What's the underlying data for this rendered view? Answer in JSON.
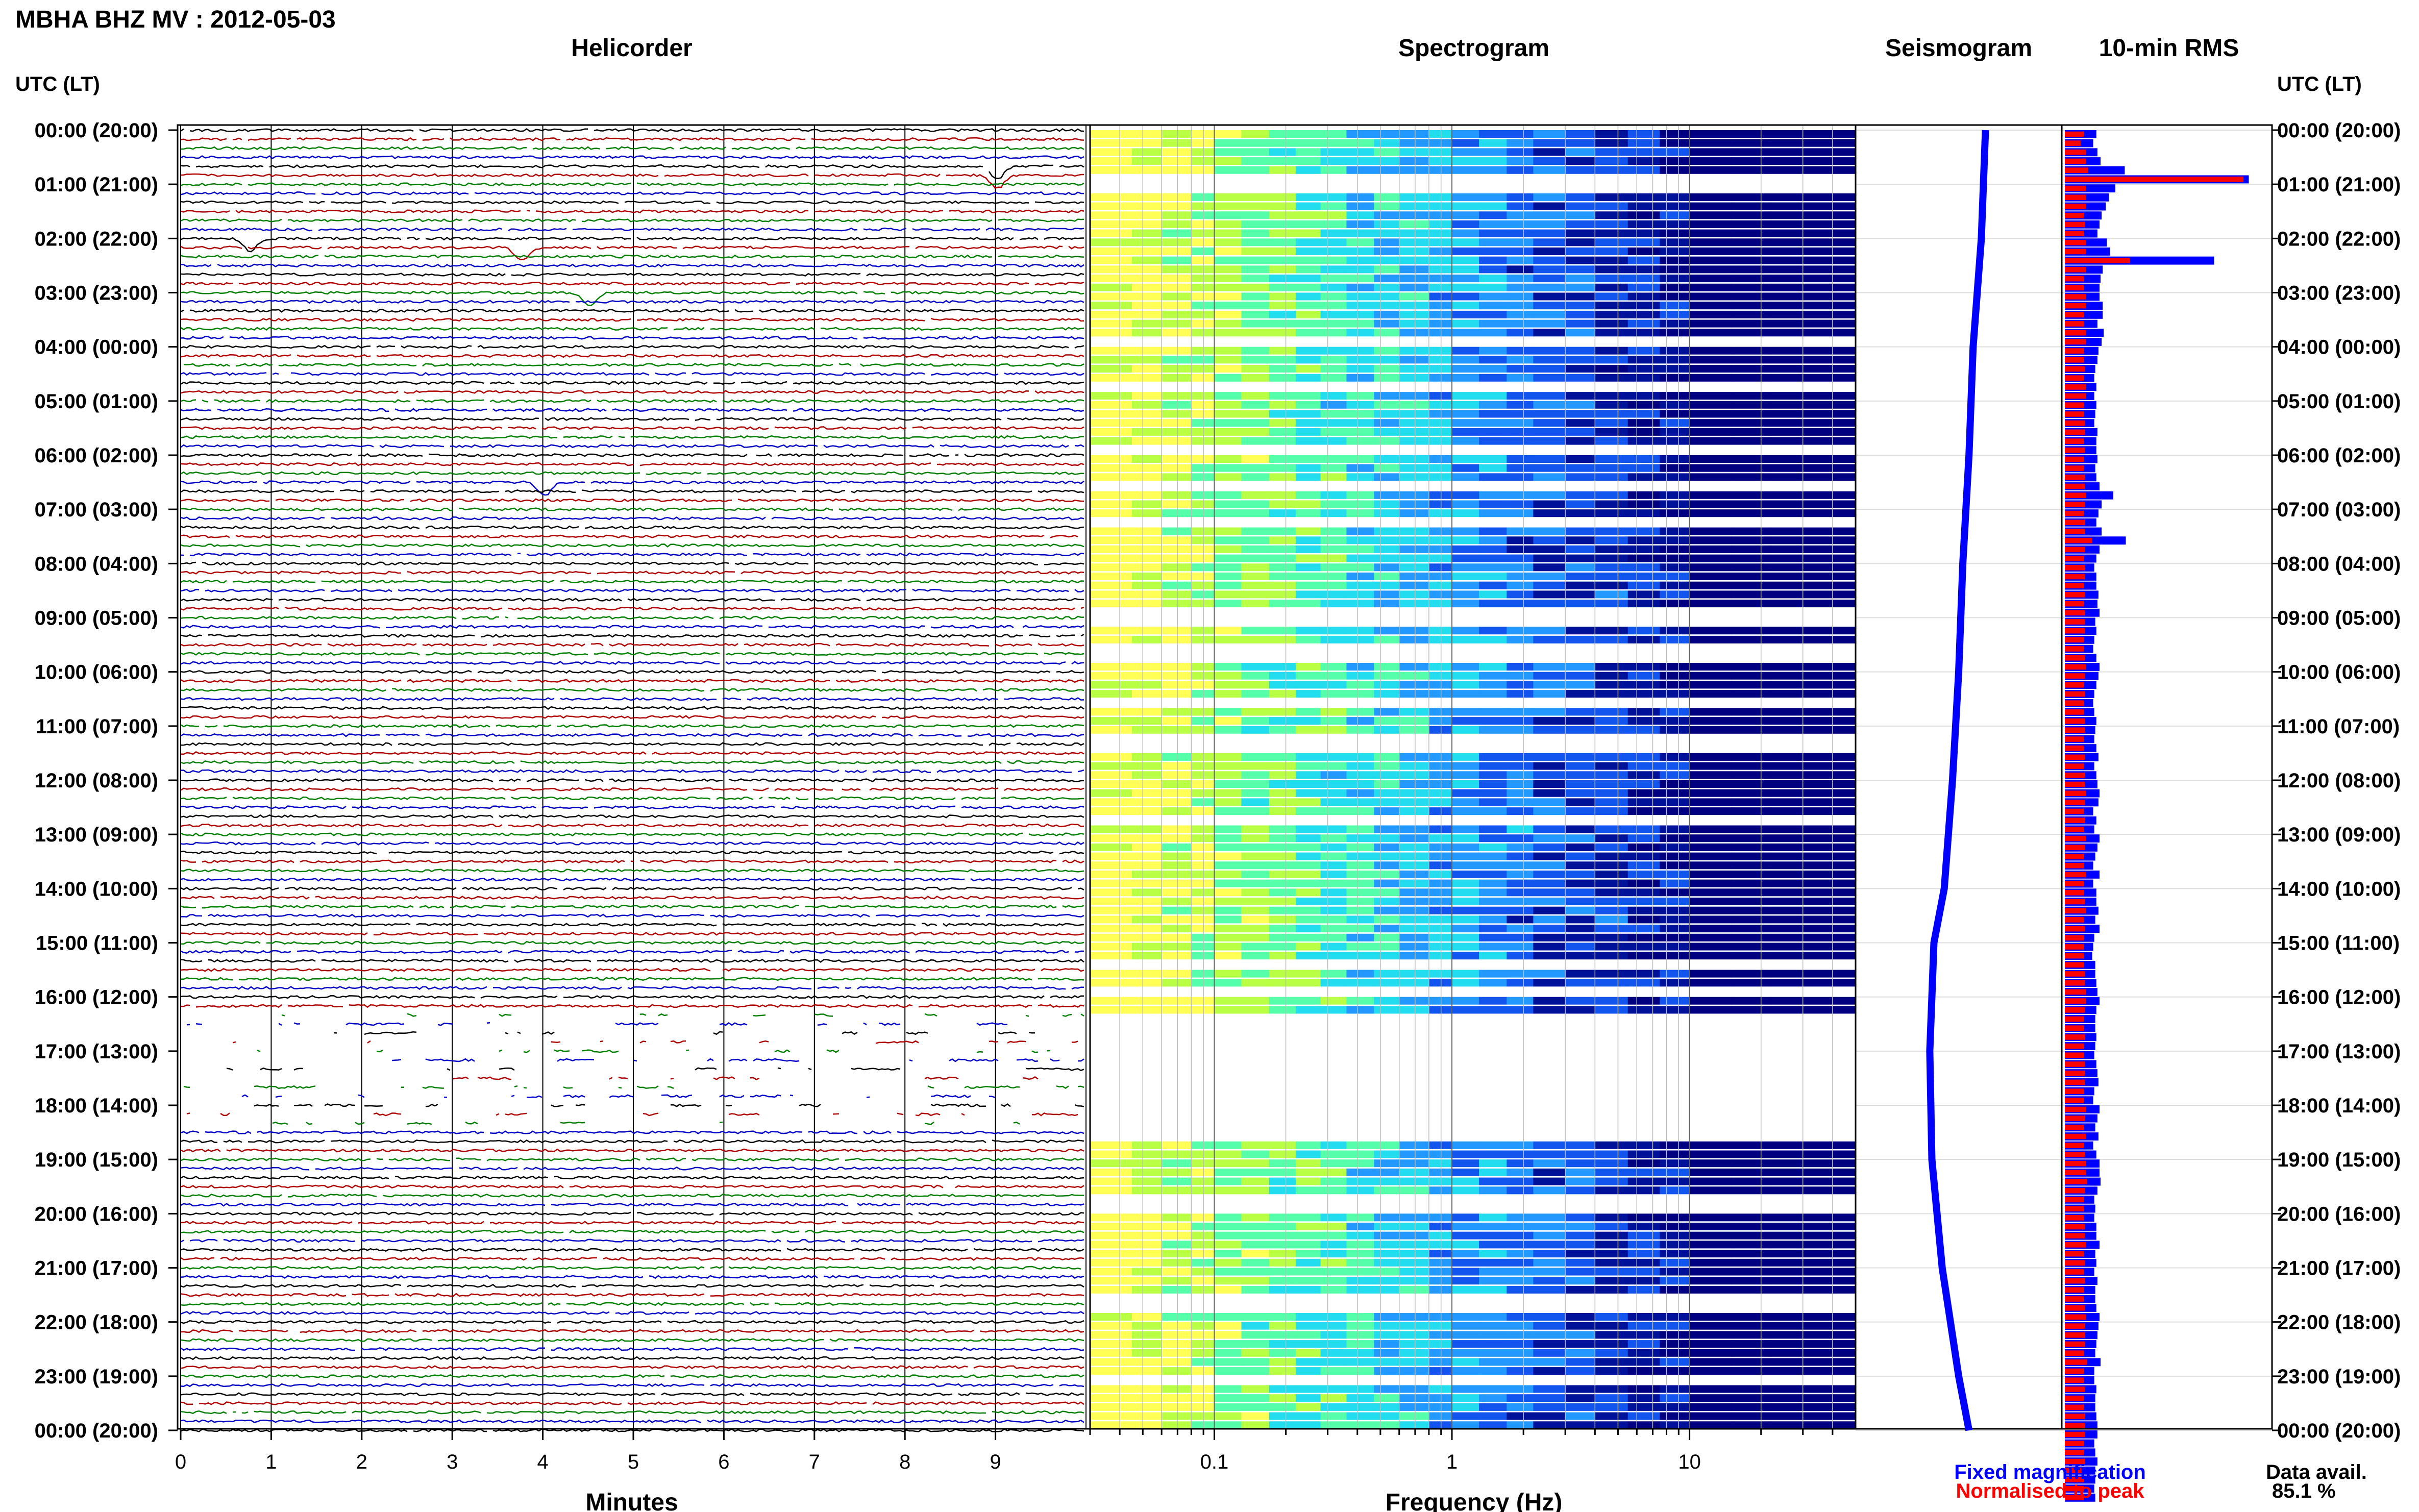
{
  "title": "MBHA BHZ MV : 2012-05-03",
  "panels": {
    "helicorder": "Helicorder",
    "spectrogram": "Spectrogram",
    "seismogram": "Seismogram",
    "rms": "10-min RMS"
  },
  "time_header_left": "UTC (LT)",
  "time_header_right": "UTC (LT)",
  "time_labels": [
    "00:00 (20:00)",
    "01:00 (21:00)",
    "02:00 (22:00)",
    "03:00 (23:00)",
    "04:00 (00:00)",
    "05:00 (01:00)",
    "06:00 (02:00)",
    "07:00 (03:00)",
    "08:00 (04:00)",
    "09:00 (05:00)",
    "10:00 (06:00)",
    "11:00 (07:00)",
    "12:00 (08:00)",
    "13:00 (09:00)",
    "14:00 (10:00)",
    "15:00 (11:00)",
    "16:00 (12:00)",
    "17:00 (13:00)",
    "18:00 (14:00)",
    "19:00 (15:00)",
    "20:00 (16:00)",
    "21:00 (17:00)",
    "22:00 (18:00)",
    "23:00 (19:00)",
    "00:00 (20:00)"
  ],
  "xlabels": {
    "helicorder": "Minutes",
    "spectrogram": "Frequency (Hz)"
  },
  "legend": {
    "fixed": "Fixed magnification",
    "normalised": "Normalised to peak",
    "fixed_color": "#0000ff",
    "normalised_color": "#ff0000"
  },
  "availability": {
    "label": "Data avail.",
    "value": "85.1 %"
  },
  "chart_data": [
    {
      "type": "line",
      "name": "helicorder",
      "xlabel": "Minutes",
      "x_ticks": [
        "0",
        "1",
        "2",
        "3",
        "4",
        "5",
        "6",
        "7",
        "8",
        "9"
      ],
      "xlim": [
        0,
        10
      ],
      "traces_per_hour": 6,
      "trace_colors": [
        "#000000",
        "#b00000",
        "#008000",
        "#0000c8"
      ],
      "gaps_hours": [
        [
          16.2,
          18.4
        ]
      ],
      "events": [
        {
          "hour": 0.75,
          "minute": 8.9
        },
        {
          "hour": 2.05,
          "minute": 0.65
        },
        {
          "hour": 2.15,
          "minute": 3.65
        },
        {
          "hour": 3.0,
          "minute": 4.4
        },
        {
          "hour": 6.55,
          "minute": 3.9
        }
      ]
    },
    {
      "type": "heatmap",
      "name": "spectrogram",
      "xlabel": "Frequency (Hz)",
      "x_scale": "log",
      "xlim": [
        0.03,
        50
      ],
      "x_ticks": [
        "0.1",
        "1",
        "10"
      ],
      "colormap": [
        "#ffff55",
        "#b9ff44",
        "#55ffaa",
        "#22ddee",
        "#2299ff",
        "#1155ee",
        "#001199",
        "#000080"
      ],
      "gaps_hours": [
        [
          16.3,
          18.6
        ]
      ]
    },
    {
      "type": "line",
      "name": "seismogram",
      "ylim_hours": [
        0,
        24
      ],
      "profile": [
        {
          "h": 0.0,
          "x": 0.63
        },
        {
          "h": 2.0,
          "x": 0.61
        },
        {
          "h": 4.0,
          "x": 0.57
        },
        {
          "h": 6.0,
          "x": 0.55
        },
        {
          "h": 8.0,
          "x": 0.52
        },
        {
          "h": 10.0,
          "x": 0.5
        },
        {
          "h": 12.0,
          "x": 0.47
        },
        {
          "h": 14.0,
          "x": 0.43
        },
        {
          "h": 15.0,
          "x": 0.38
        },
        {
          "h": 16.0,
          "x": 0.37
        },
        {
          "h": 17.0,
          "x": 0.36
        },
        {
          "h": 19.0,
          "x": 0.37
        },
        {
          "h": 21.0,
          "x": 0.42
        },
        {
          "h": 23.0,
          "x": 0.5
        },
        {
          "h": 24.0,
          "x": 0.55
        }
      ]
    },
    {
      "type": "bar",
      "name": "10-min RMS",
      "bins_per_hour": 6,
      "ylim_hours": [
        0,
        24
      ],
      "fixed_magnification": [
        0.3,
        0.27,
        0.31,
        0.34,
        0.57,
        1.75,
        0.48,
        0.42,
        0.39,
        0.35,
        0.33,
        0.31,
        0.4,
        0.43,
        1.42,
        0.36,
        0.34,
        0.33,
        0.33,
        0.36,
        0.36,
        0.31,
        0.37,
        0.35,
        0.32,
        0.31,
        0.29,
        0.28,
        0.3,
        0.28,
        0.3,
        0.29,
        0.28,
        0.31,
        0.3,
        0.3,
        0.31,
        0.29,
        0.3,
        0.33,
        0.46,
        0.35,
        0.32,
        0.3,
        0.35,
        0.58,
        0.33,
        0.3,
        0.28,
        0.3,
        0.3,
        0.32,
        0.31,
        0.33,
        0.29,
        0.3,
        0.28,
        0.27,
        0.3,
        0.33,
        0.32,
        0.3,
        0.28,
        0.27,
        0.28,
        0.3,
        0.29,
        0.28,
        0.3,
        0.32,
        0.28,
        0.3,
        0.31,
        0.33,
        0.32,
        0.27,
        0.3,
        0.28,
        0.33,
        0.31,
        0.29,
        0.27,
        0.33,
        0.27,
        0.3,
        0.3,
        0.32,
        0.29,
        0.33,
        0.28,
        0.27,
        0.26,
        0.29,
        0.29,
        0.3,
        0.31,
        0.33,
        0.3,
        0.29,
        0.29,
        0.3,
        0.29,
        0.28,
        0.3,
        0.31,
        0.32,
        0.28,
        0.27,
        0.33,
        0.31,
        0.29,
        0.32,
        0.27,
        0.3,
        0.33,
        0.33,
        0.34,
        0.31,
        0.28,
        0.29,
        0.28,
        0.3,
        0.3,
        0.33,
        0.29,
        0.3,
        0.28,
        0.31,
        0.29,
        0.29,
        0.3,
        0.33,
        0.32,
        0.31,
        0.3,
        0.29,
        0.34,
        0.28,
        0.28,
        0.3,
        0.29,
        0.29,
        0.3,
        0.31,
        0.31,
        0.28,
        0.29,
        0.31,
        0.29,
        0.29,
        0.28,
        0.29
      ],
      "normalised_to_peak": [
        0.18,
        0.15,
        0.2,
        0.2,
        0.22,
        1.7,
        0.2,
        0.2,
        0.2,
        0.18,
        0.19,
        0.18,
        0.2,
        0.2,
        0.62,
        0.2,
        0.18,
        0.18,
        0.2,
        0.2,
        0.18,
        0.18,
        0.2,
        0.2,
        0.18,
        0.18,
        0.19,
        0.18,
        0.2,
        0.2,
        0.18,
        0.18,
        0.19,
        0.19,
        0.18,
        0.19,
        0.18,
        0.18,
        0.19,
        0.19,
        0.2,
        0.19,
        0.18,
        0.19,
        0.19,
        0.26,
        0.19,
        0.18,
        0.19,
        0.19,
        0.18,
        0.19,
        0.18,
        0.19,
        0.19,
        0.19,
        0.18,
        0.18,
        0.19,
        0.2,
        0.19,
        0.18,
        0.19,
        0.18,
        0.18,
        0.19,
        0.19,
        0.18,
        0.18,
        0.19,
        0.18,
        0.19,
        0.19,
        0.2,
        0.19,
        0.18,
        0.19,
        0.18,
        0.2,
        0.19,
        0.18,
        0.18,
        0.2,
        0.18,
        0.18,
        0.19,
        0.2,
        0.18,
        0.19,
        0.18,
        0.18,
        0.18,
        0.18,
        0.19,
        0.19,
        0.2,
        0.2,
        0.19,
        0.18,
        0.18,
        0.19,
        0.18,
        0.18,
        0.19,
        0.19,
        0.19,
        0.18,
        0.18,
        0.2,
        0.19,
        0.18,
        0.2,
        0.18,
        0.19,
        0.2,
        0.2,
        0.21,
        0.19,
        0.18,
        0.18,
        0.18,
        0.19,
        0.19,
        0.2,
        0.18,
        0.19,
        0.18,
        0.19,
        0.18,
        0.18,
        0.19,
        0.2,
        0.19,
        0.19,
        0.19,
        0.18,
        0.21,
        0.18,
        0.18,
        0.19,
        0.18,
        0.18,
        0.19,
        0.19,
        0.19,
        0.18,
        0.18,
        0.19,
        0.18,
        0.18,
        0.18,
        0.18
      ]
    }
  ]
}
